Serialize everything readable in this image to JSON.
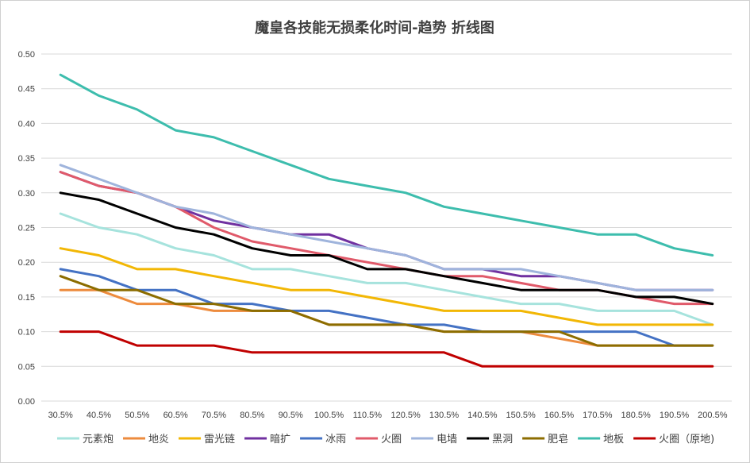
{
  "chart_data": {
    "type": "line",
    "title": "魔皇各技能无损柔化时间-趋势 折线图",
    "xlabel": "",
    "ylabel": "",
    "ylim": [
      0,
      0.5
    ],
    "yticks": [
      "0.00",
      "0.05",
      "0.10",
      "0.15",
      "0.20",
      "0.25",
      "0.30",
      "0.35",
      "0.40",
      "0.45",
      "0.50"
    ],
    "grid": true,
    "legend_position": "bottom",
    "categories": [
      "30.5%",
      "40.5%",
      "50.5%",
      "60.5%",
      "70.5%",
      "80.5%",
      "90.5%",
      "100.5%",
      "110.5%",
      "120.5%",
      "130.5%",
      "140.5%",
      "150.5%",
      "160.5%",
      "170.5%",
      "180.5%",
      "190.5%",
      "200.5%"
    ],
    "series": [
      {
        "name": "元素炮",
        "color": "#a6e3dd",
        "values": [
          0.27,
          0.25,
          0.24,
          0.22,
          0.21,
          0.19,
          0.19,
          0.18,
          0.17,
          0.17,
          0.16,
          0.15,
          0.14,
          0.14,
          0.13,
          0.13,
          0.13,
          0.11
        ]
      },
      {
        "name": "地炎",
        "color": "#ed8b3d",
        "values": [
          0.16,
          0.16,
          0.14,
          0.14,
          0.13,
          0.13,
          0.13,
          0.11,
          0.11,
          0.11,
          0.1,
          0.1,
          0.1,
          0.09,
          0.08,
          0.08,
          0.08,
          0.08
        ]
      },
      {
        "name": "雷光链",
        "color": "#f2b705",
        "values": [
          0.22,
          0.21,
          0.19,
          0.19,
          0.18,
          0.17,
          0.16,
          0.16,
          0.15,
          0.14,
          0.13,
          0.13,
          0.13,
          0.12,
          0.11,
          0.11,
          0.11,
          0.11
        ]
      },
      {
        "name": "暗扩",
        "color": "#7030a0",
        "values": [
          0.33,
          0.31,
          0.3,
          0.28,
          0.26,
          0.25,
          0.24,
          0.24,
          0.22,
          0.21,
          0.19,
          0.19,
          0.18,
          0.18,
          0.17,
          0.16,
          0.16,
          0.16
        ]
      },
      {
        "name": "冰雨",
        "color": "#4472c4",
        "values": [
          0.19,
          0.18,
          0.16,
          0.16,
          0.14,
          0.14,
          0.13,
          0.13,
          0.12,
          0.11,
          0.11,
          0.1,
          0.1,
          0.1,
          0.1,
          0.1,
          0.08,
          0.08
        ]
      },
      {
        "name": "火圈",
        "color": "#e05a6a",
        "values": [
          0.33,
          0.31,
          0.3,
          0.28,
          0.25,
          0.23,
          0.22,
          0.21,
          0.2,
          0.19,
          0.18,
          0.18,
          0.17,
          0.16,
          0.16,
          0.15,
          0.14,
          0.14
        ]
      },
      {
        "name": "电墙",
        "color": "#9fb4dc",
        "values": [
          0.34,
          0.32,
          0.3,
          0.28,
          0.27,
          0.25,
          0.24,
          0.23,
          0.22,
          0.21,
          0.19,
          0.19,
          0.19,
          0.18,
          0.17,
          0.16,
          0.16,
          0.16
        ]
      },
      {
        "name": "黑洞",
        "color": "#000000",
        "values": [
          0.3,
          0.29,
          0.27,
          0.25,
          0.24,
          0.22,
          0.21,
          0.21,
          0.19,
          0.19,
          0.18,
          0.17,
          0.16,
          0.16,
          0.16,
          0.15,
          0.15,
          0.14
        ]
      },
      {
        "name": "肥皂",
        "color": "#8c6d00",
        "values": [
          0.18,
          0.16,
          0.16,
          0.14,
          0.14,
          0.13,
          0.13,
          0.11,
          0.11,
          0.11,
          0.1,
          0.1,
          0.1,
          0.1,
          0.08,
          0.08,
          0.08,
          0.08
        ]
      },
      {
        "name": "地板",
        "color": "#3dbdad",
        "values": [
          0.47,
          0.44,
          0.42,
          0.39,
          0.38,
          0.36,
          0.34,
          0.32,
          0.31,
          0.3,
          0.28,
          0.27,
          0.26,
          0.25,
          0.24,
          0.24,
          0.22,
          0.21
        ]
      },
      {
        "name": "火圈（原地)",
        "color": "#c00000",
        "values": [
          0.1,
          0.1,
          0.08,
          0.08,
          0.08,
          0.07,
          0.07,
          0.07,
          0.07,
          0.07,
          0.07,
          0.05,
          0.05,
          0.05,
          0.05,
          0.05,
          0.05,
          0.05
        ]
      }
    ]
  }
}
